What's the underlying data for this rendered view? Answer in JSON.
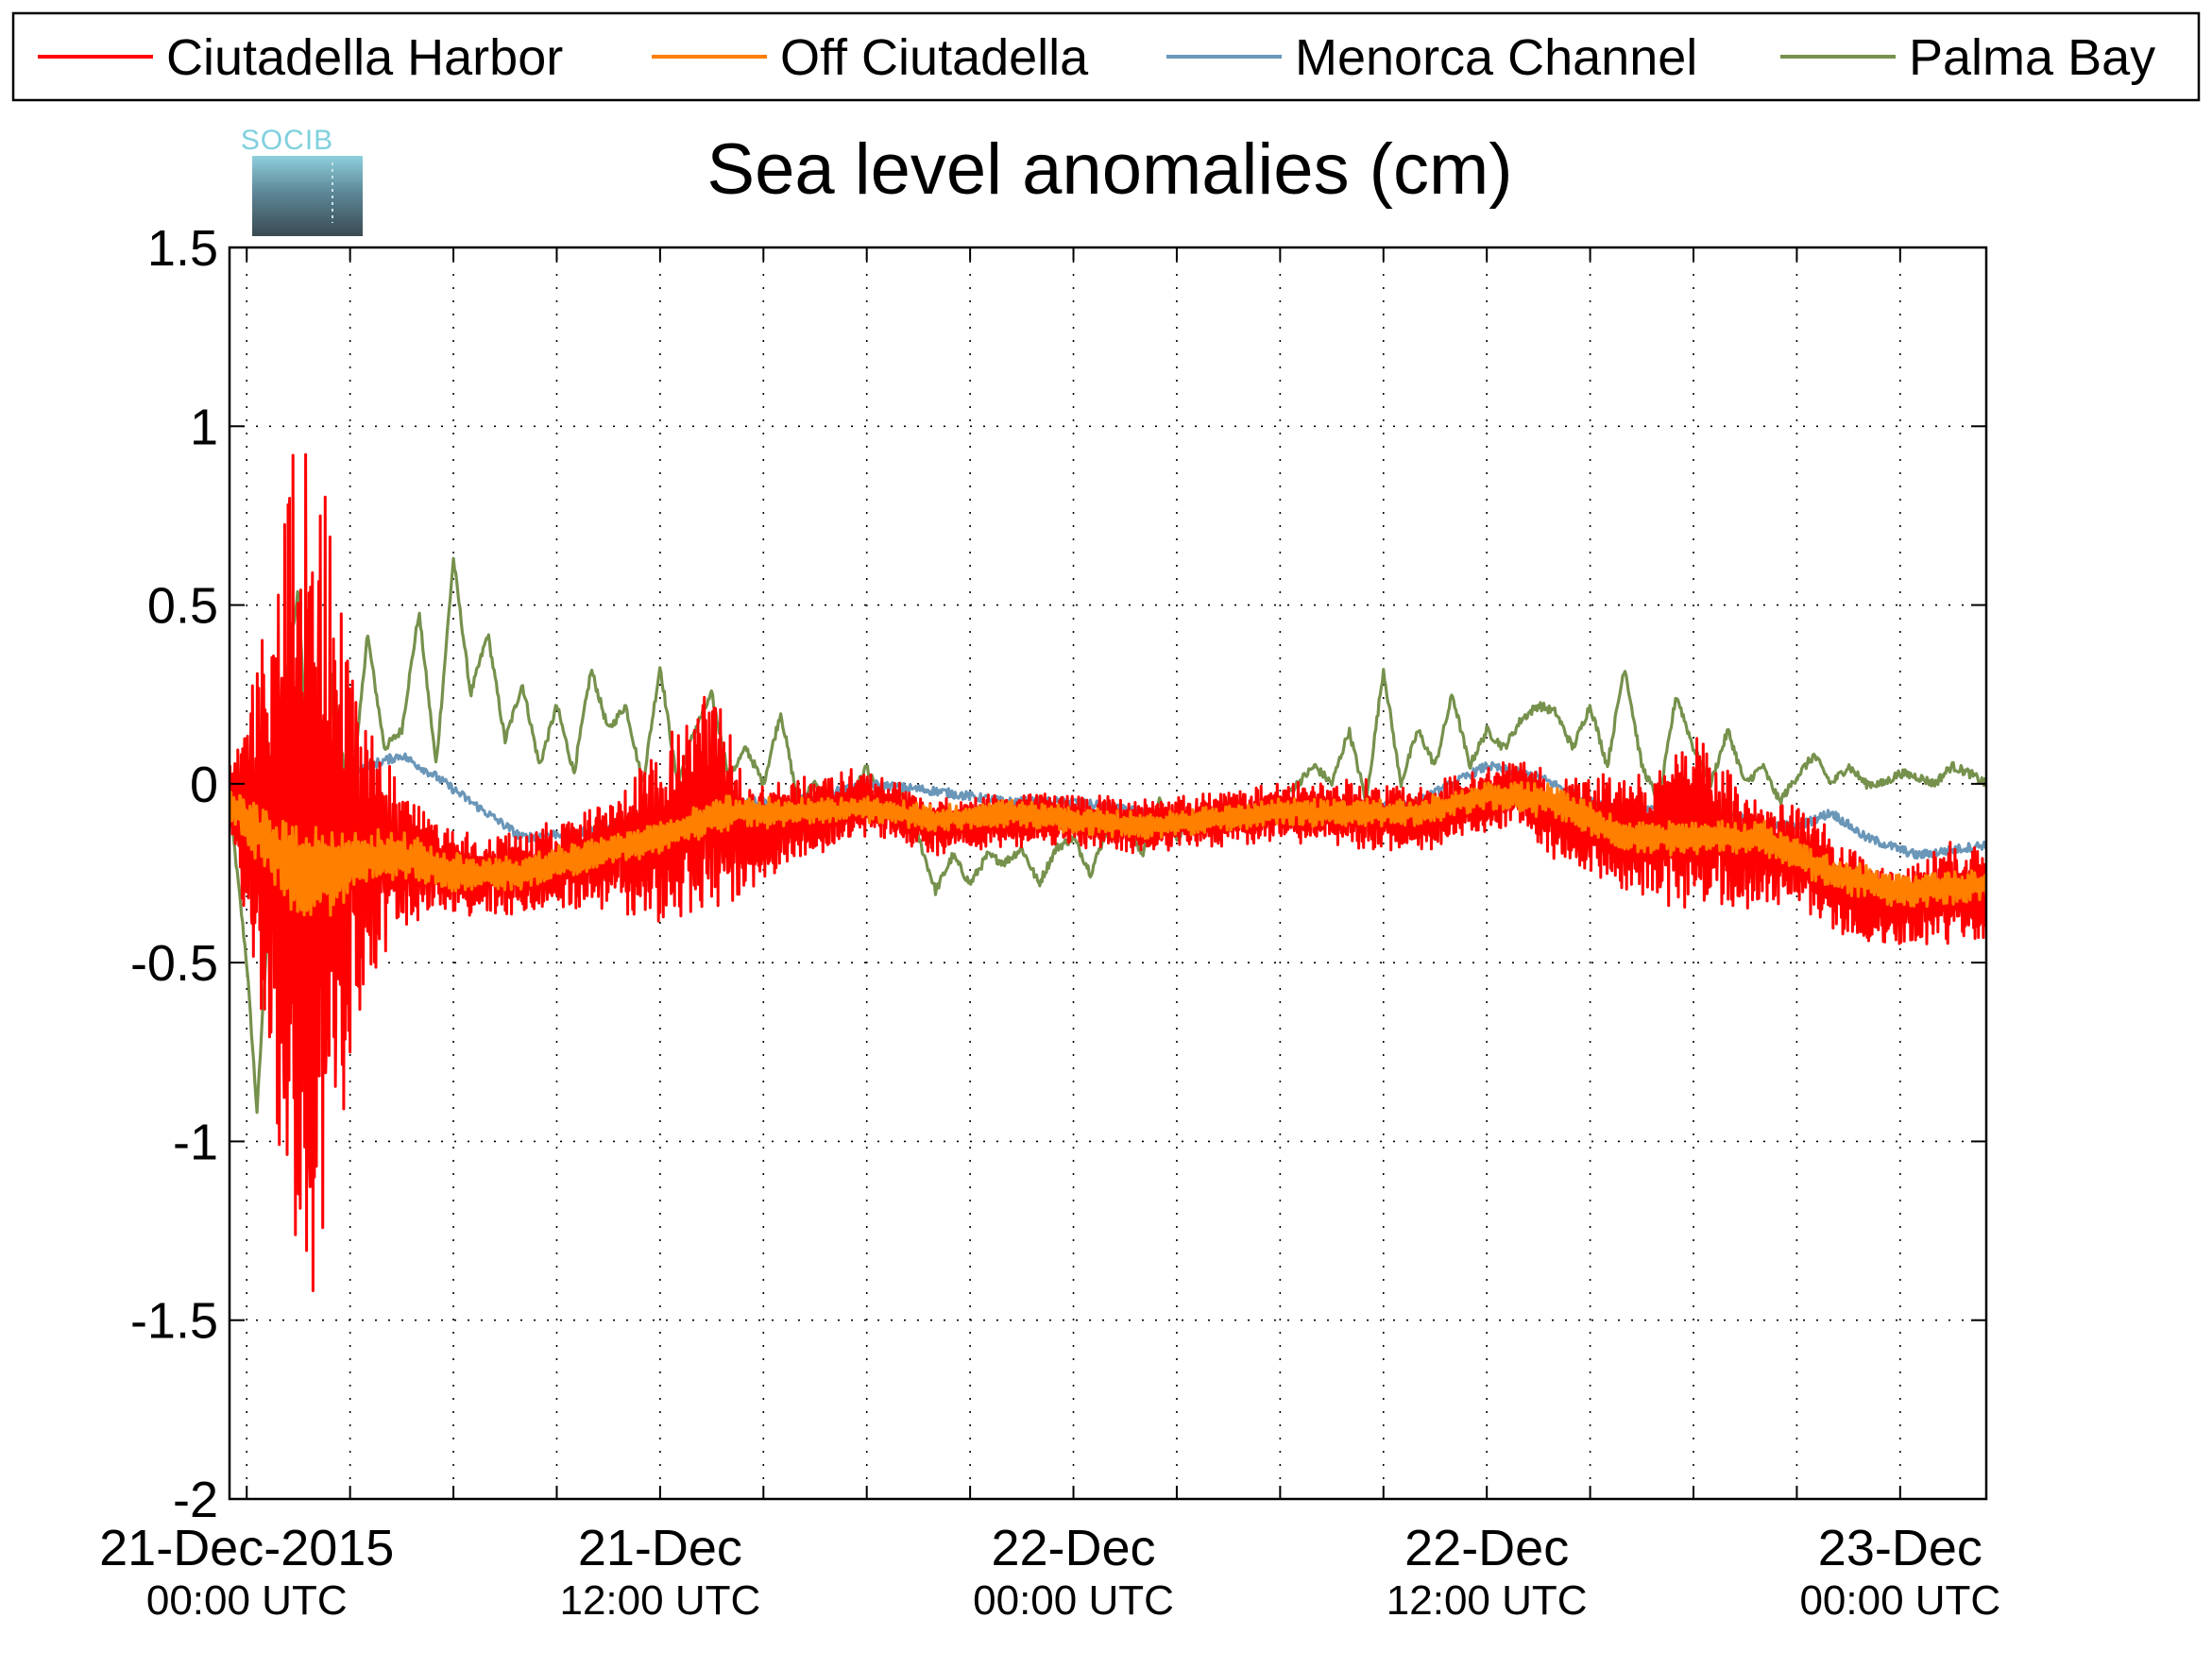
{
  "chart_data": {
    "type": "line",
    "title": "Sea level anomalies (cm)",
    "logo_text": "SOCIB",
    "xlabel": "",
    "ylabel": "",
    "ylim": [
      -2,
      1.5
    ],
    "yticks": [
      "1.5",
      "1",
      "0.5",
      "0",
      "-0.5",
      "-1",
      "-1.5",
      "-2"
    ],
    "xlim": [
      -0.5,
      50.5
    ],
    "xticks": [
      {
        "date": "21-Dec-2015",
        "time": "00:00 UTC"
      },
      {
        "date": "21-Dec",
        "time": "12:00 UTC"
      },
      {
        "date": "22-Dec",
        "time": "00:00 UTC"
      },
      {
        "date": "22-Dec",
        "time": "12:00 UTC"
      },
      {
        "date": "23-Dec",
        "time": "00:00 UTC"
      }
    ],
    "grid": true,
    "legend_position": "top",
    "series": [
      {
        "name": "Ciutadella Harbor",
        "color": "#ff0000",
        "style": "oscillating",
        "x": [
          -0.5,
          0.5,
          1.0,
          1.5,
          2.0,
          2.5,
          3.0,
          3.5,
          4.5,
          6.0,
          8.0,
          10.0,
          12.0,
          13.5,
          14.5,
          16.0,
          18.0,
          20.0,
          22.0,
          24.0,
          26.0,
          28.0,
          30.0,
          32.0,
          34.0,
          36.0,
          37.0,
          38.0,
          39.5,
          41.0,
          42.0,
          43.0,
          44.0,
          45.0,
          46.5,
          48.0,
          49.5,
          50.5
        ],
        "center": [
          -0.05,
          -0.15,
          -0.2,
          -0.25,
          -0.25,
          -0.2,
          -0.2,
          -0.2,
          -0.2,
          -0.25,
          -0.25,
          -0.2,
          -0.15,
          -0.05,
          -0.15,
          -0.1,
          -0.05,
          -0.12,
          -0.1,
          -0.1,
          -0.12,
          -0.1,
          -0.08,
          -0.08,
          -0.1,
          -0.05,
          -0.02,
          -0.1,
          -0.12,
          -0.15,
          -0.1,
          -0.15,
          -0.2,
          -0.2,
          -0.3,
          -0.35,
          -0.3,
          -0.3
        ],
        "amplitude": [
          0.1,
          0.6,
          1.0,
          1.4,
          1.3,
          0.9,
          0.6,
          0.4,
          0.2,
          0.12,
          0.12,
          0.15,
          0.25,
          0.35,
          0.15,
          0.12,
          0.1,
          0.08,
          0.08,
          0.08,
          0.08,
          0.08,
          0.08,
          0.1,
          0.1,
          0.1,
          0.1,
          0.12,
          0.15,
          0.2,
          0.25,
          0.22,
          0.15,
          0.15,
          0.15,
          0.1,
          0.15,
          0.15
        ]
      },
      {
        "name": "Off Ciutadella",
        "color": "#ff7f00",
        "style": "oscillating",
        "x": [
          -0.5,
          0.5,
          1.5,
          2.5,
          3.5,
          4.5,
          6.0,
          8.0,
          10.0,
          12.0,
          14.0,
          16.0,
          18.0,
          20.0,
          22.0,
          24.0,
          26.0,
          28.0,
          30.0,
          32.0,
          34.0,
          36.0,
          38.0,
          40.0,
          42.0,
          44.0,
          46.0,
          48.0,
          50.5
        ],
        "center": [
          -0.05,
          -0.15,
          -0.25,
          -0.25,
          -0.2,
          -0.2,
          -0.25,
          -0.25,
          -0.2,
          -0.15,
          -0.08,
          -0.08,
          -0.07,
          -0.1,
          -0.08,
          -0.1,
          -0.12,
          -0.1,
          -0.08,
          -0.08,
          -0.08,
          -0.03,
          -0.05,
          -0.15,
          -0.15,
          -0.15,
          -0.25,
          -0.3,
          -0.28
        ],
        "amplitude": [
          0.05,
          0.1,
          0.15,
          0.12,
          0.08,
          0.07,
          0.06,
          0.05,
          0.05,
          0.05,
          0.05,
          0.04,
          0.04,
          0.04,
          0.04,
          0.04,
          0.04,
          0.04,
          0.04,
          0.04,
          0.04,
          0.04,
          0.05,
          0.05,
          0.05,
          0.05,
          0.05,
          0.05,
          0.05
        ]
      },
      {
        "name": "Menorca Channel",
        "color": "#6a96b8",
        "style": "smooth",
        "x": [
          -0.5,
          0.5,
          1.5,
          2.5,
          3.5,
          4.5,
          5.5,
          6.5,
          8.0,
          10.0,
          12.0,
          14.0,
          16.0,
          18.0,
          20.0,
          22.0,
          24.0,
          26.0,
          28.0,
          30.0,
          32.0,
          34.0,
          36.0,
          37.5,
          39.0,
          40.5,
          42.0,
          43.5,
          45.0,
          46.0,
          47.0,
          48.5,
          50.5
        ],
        "y": [
          0.0,
          -0.05,
          0.0,
          0.02,
          0.05,
          0.08,
          0.02,
          -0.05,
          -0.15,
          -0.13,
          -0.1,
          -0.05,
          -0.05,
          0.0,
          -0.02,
          -0.05,
          -0.05,
          -0.08,
          -0.12,
          -0.05,
          -0.08,
          -0.05,
          0.05,
          0.02,
          -0.05,
          -0.08,
          -0.05,
          -0.1,
          -0.12,
          -0.08,
          -0.15,
          -0.2,
          -0.17
        ]
      },
      {
        "name": "Palma Bay",
        "color": "#76914c",
        "style": "smooth",
        "x": [
          -0.5,
          0.0,
          0.3,
          0.6,
          1.0,
          1.5,
          2.0,
          2.5,
          3.0,
          3.5,
          4.0,
          4.5,
          5.0,
          5.5,
          6.0,
          6.5,
          7.0,
          7.5,
          8.0,
          8.5,
          9.0,
          9.5,
          10.0,
          10.5,
          11.0,
          11.5,
          12.0,
          12.5,
          13.0,
          13.5,
          14.0,
          14.5,
          15.0,
          15.5,
          16.0,
          16.5,
          17.0,
          17.5,
          18.0,
          18.5,
          19.0,
          19.5,
          20.0,
          20.5,
          21.0,
          21.5,
          22.0,
          22.5,
          23.0,
          23.5,
          24.0,
          24.5,
          25.0,
          25.5,
          26.0,
          26.5,
          27.0,
          27.5,
          28.0,
          28.5,
          29.0,
          29.5,
          30.0,
          30.5,
          31.0,
          31.5,
          32.0,
          32.5,
          33.0,
          33.5,
          34.0,
          34.5,
          35.0,
          35.5,
          36.0,
          36.5,
          37.0,
          37.5,
          38.0,
          38.5,
          39.0,
          39.5,
          40.0,
          40.5,
          41.0,
          41.5,
          42.0,
          42.5,
          43.0,
          43.5,
          44.0,
          44.5,
          45.0,
          45.5,
          46.0,
          46.5,
          47.0,
          47.5,
          48.0,
          48.5,
          49.0,
          49.5,
          50.0,
          50.5
        ],
        "y": [
          -0.05,
          -0.5,
          -0.92,
          -0.4,
          0.2,
          0.55,
          -0.45,
          0.3,
          -0.1,
          0.42,
          0.1,
          0.15,
          0.48,
          0.05,
          0.63,
          0.25,
          0.42,
          0.12,
          0.28,
          0.05,
          0.22,
          0.03,
          0.32,
          0.15,
          0.22,
          0.0,
          0.33,
          0.0,
          0.15,
          0.25,
          0.02,
          0.1,
          0.0,
          0.2,
          -0.05,
          0.0,
          -0.1,
          -0.05,
          0.05,
          -0.08,
          -0.02,
          -0.15,
          -0.3,
          -0.2,
          -0.28,
          -0.2,
          -0.22,
          -0.18,
          -0.28,
          -0.18,
          -0.15,
          -0.25,
          -0.12,
          -0.1,
          -0.2,
          -0.05,
          -0.15,
          -0.1,
          -0.1,
          -0.05,
          -0.08,
          -0.1,
          -0.05,
          0.0,
          0.05,
          0.0,
          0.15,
          -0.05,
          0.32,
          0.0,
          0.15,
          0.05,
          0.25,
          0.05,
          0.15,
          0.1,
          0.18,
          0.22,
          0.2,
          0.1,
          0.22,
          0.05,
          0.33,
          0.05,
          -0.05,
          0.25,
          0.1,
          0.0,
          0.15,
          0.0,
          0.05,
          -0.05,
          0.02,
          0.08,
          0.0,
          0.05,
          0.0,
          0.0,
          0.03,
          0.02,
          0.0,
          0.05,
          0.03,
          0.0
        ]
      }
    ]
  }
}
